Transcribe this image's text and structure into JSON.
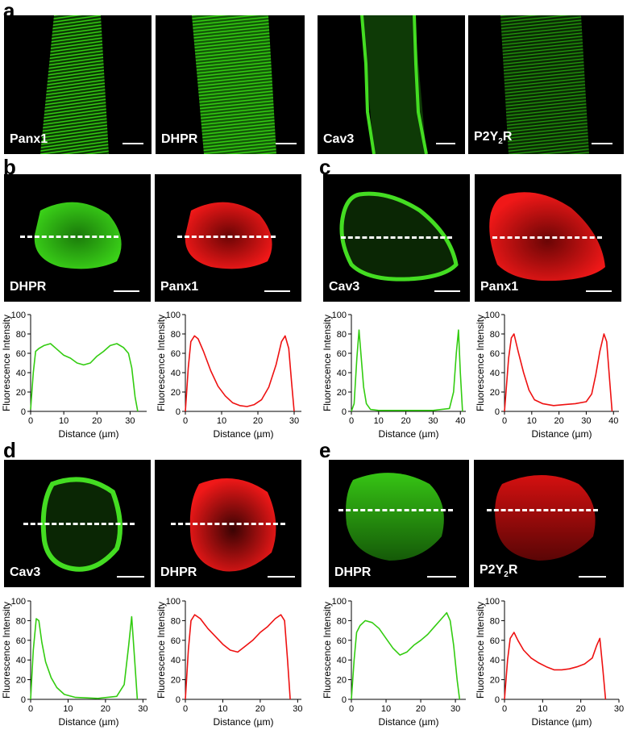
{
  "figure": {
    "panels": {
      "a": {
        "letter": "a",
        "images": [
          {
            "label": "Panx1",
            "sub": "",
            "color": "green",
            "kind": "striated"
          },
          {
            "label": "DHPR",
            "sub": "",
            "color": "green",
            "kind": "striated"
          },
          {
            "label": "Cav3",
            "sub": "",
            "color": "green",
            "kind": "membrane"
          },
          {
            "label": "P2Y",
            "sub": "2",
            "suffix": "R",
            "color": "green",
            "kind": "striated-dim"
          }
        ]
      },
      "b": {
        "letter": "b",
        "images": [
          {
            "label": "DHPR",
            "sub": "",
            "suffix": "",
            "color": "green"
          },
          {
            "label": "Panx1",
            "sub": "",
            "suffix": "",
            "color": "red"
          }
        ]
      },
      "c": {
        "letter": "c",
        "images": [
          {
            "label": "Cav3",
            "sub": "",
            "suffix": "",
            "color": "green"
          },
          {
            "label": "Panx1",
            "sub": "",
            "suffix": "",
            "color": "red"
          }
        ]
      },
      "d": {
        "letter": "d",
        "images": [
          {
            "label": "Cav3",
            "sub": "",
            "suffix": "",
            "color": "green"
          },
          {
            "label": "DHPR",
            "sub": "",
            "suffix": "",
            "color": "red"
          }
        ]
      },
      "e": {
        "letter": "e",
        "images": [
          {
            "label": "DHPR",
            "sub": "",
            "suffix": "",
            "color": "green"
          },
          {
            "label": "P2Y",
            "sub": "2",
            "suffix": "R",
            "color": "red"
          }
        ]
      }
    },
    "colors": {
      "green": "#33cc11",
      "red": "#ee1111",
      "background": "#000000"
    }
  },
  "chart_data": [
    {
      "id": "b-left",
      "type": "line",
      "xlabel": "Distance (µm)",
      "ylabel": "Fluorescence Intensity",
      "xlim": [
        0,
        35
      ],
      "ylim": [
        0,
        100
      ],
      "xticks": [
        0,
        10,
        20,
        30
      ],
      "yticks": [
        0,
        20,
        40,
        60,
        80,
        100
      ],
      "series": [
        {
          "color": "#33cc11",
          "x": [
            0,
            0.8,
            1.5,
            2.5,
            4,
            6,
            8,
            10,
            12,
            14,
            16,
            18,
            20,
            22,
            24,
            26,
            28,
            29.5,
            30.5,
            31.5,
            32.3
          ],
          "y": [
            2,
            40,
            62,
            65,
            68,
            70,
            64,
            58,
            55,
            50,
            48,
            50,
            57,
            62,
            68,
            70,
            66,
            60,
            45,
            15,
            0
          ]
        }
      ]
    },
    {
      "id": "b-right",
      "type": "line",
      "xlabel": "Distance (µm)",
      "ylabel": "Fluorescence Intensity",
      "xlim": [
        0,
        32
      ],
      "ylim": [
        0,
        100
      ],
      "xticks": [
        0,
        10,
        20,
        30
      ],
      "yticks": [
        0,
        20,
        40,
        60,
        80,
        100
      ],
      "series": [
        {
          "color": "#ee1111",
          "x": [
            0,
            0.8,
            1.5,
            2.5,
            3.5,
            5,
            7,
            9,
            11,
            13,
            15,
            17,
            19,
            21,
            23,
            25,
            26.5,
            27.5,
            28.5,
            29.3,
            30
          ],
          "y": [
            0,
            45,
            72,
            78,
            75,
            62,
            42,
            26,
            16,
            9,
            6,
            5,
            7,
            12,
            25,
            48,
            72,
            78,
            65,
            30,
            0
          ]
        }
      ]
    },
    {
      "id": "c-left",
      "type": "line",
      "xlabel": "Distance (µm)",
      "ylabel": "Fluorescence Intensity",
      "xlim": [
        0,
        42
      ],
      "ylim": [
        0,
        100
      ],
      "xticks": [
        0,
        10,
        20,
        30,
        40
      ],
      "yticks": [
        0,
        20,
        40,
        60,
        80,
        100
      ],
      "series": [
        {
          "color": "#33cc11",
          "x": [
            0,
            1,
            2,
            2.8,
            3.5,
            4.5,
            5.5,
            7,
            10,
            20,
            30,
            36,
            37.5,
            38.5,
            39.3,
            40,
            40.8
          ],
          "y": [
            0,
            8,
            55,
            84,
            60,
            25,
            8,
            2,
            1,
            1,
            1,
            3,
            20,
            60,
            84,
            40,
            0
          ]
        }
      ]
    },
    {
      "id": "c-right",
      "type": "line",
      "xlabel": "Distance (µm)",
      "ylabel": "Fluorescence Intensity",
      "xlim": [
        0,
        42
      ],
      "ylim": [
        0,
        100
      ],
      "xticks": [
        0,
        10,
        20,
        30,
        40
      ],
      "yticks": [
        0,
        20,
        40,
        60,
        80,
        100
      ],
      "series": [
        {
          "color": "#ee1111",
          "x": [
            0,
            1.5,
            2.5,
            3.5,
            5,
            7,
            9,
            11,
            14,
            18,
            22,
            26,
            30,
            32,
            33.5,
            35,
            36.5,
            37.5,
            38.5,
            39.5
          ],
          "y": [
            0,
            55,
            76,
            80,
            62,
            40,
            22,
            12,
            8,
            6,
            7,
            8,
            10,
            18,
            38,
            62,
            80,
            72,
            35,
            0
          ]
        }
      ]
    },
    {
      "id": "d-left",
      "type": "line",
      "xlabel": "Distance (µm)",
      "ylabel": "Fluorescence Intensity",
      "xlim": [
        0,
        31
      ],
      "ylim": [
        0,
        100
      ],
      "xticks": [
        0,
        10,
        20,
        30
      ],
      "yticks": [
        0,
        20,
        40,
        60,
        80,
        100
      ],
      "series": [
        {
          "color": "#33cc11",
          "x": [
            0,
            0.7,
            1.5,
            2.2,
            3,
            4,
            5.5,
            7,
            9,
            12,
            18,
            23,
            25,
            26.2,
            27,
            27.8,
            28.5
          ],
          "y": [
            0,
            50,
            82,
            80,
            58,
            38,
            22,
            12,
            5,
            2,
            1,
            3,
            15,
            55,
            84,
            40,
            0
          ]
        }
      ]
    },
    {
      "id": "d-right",
      "type": "line",
      "xlabel": "Distance (µm)",
      "ylabel": "Fluorescence Intensity",
      "xlim": [
        0,
        31
      ],
      "ylim": [
        0,
        100
      ],
      "xticks": [
        0,
        10,
        20,
        30
      ],
      "yticks": [
        0,
        20,
        40,
        60,
        80,
        100
      ],
      "series": [
        {
          "color": "#ee1111",
          "x": [
            0,
            0.8,
            1.5,
            2.5,
            4,
            6,
            8,
            10,
            12,
            14,
            16,
            18,
            20,
            22,
            24,
            25.5,
            26.5,
            27.3,
            28
          ],
          "y": [
            0,
            50,
            80,
            86,
            82,
            72,
            64,
            56,
            50,
            48,
            54,
            60,
            68,
            74,
            82,
            86,
            80,
            40,
            0
          ]
        }
      ]
    },
    {
      "id": "e-left",
      "type": "line",
      "xlabel": "Distance (µm)",
      "ylabel": "Fluorescence Intensity",
      "xlim": [
        0,
        33
      ],
      "ylim": [
        0,
        100
      ],
      "xticks": [
        0,
        10,
        20,
        30
      ],
      "yticks": [
        0,
        20,
        40,
        60,
        80,
        100
      ],
      "series": [
        {
          "color": "#33cc11",
          "x": [
            0,
            0.8,
            1.5,
            2.5,
            4,
            6,
            8,
            10,
            12,
            14,
            16,
            18,
            20,
            22,
            24,
            26,
            27.5,
            28.5,
            29.5,
            30.5,
            31.2
          ],
          "y": [
            0,
            40,
            68,
            75,
            80,
            78,
            72,
            62,
            52,
            45,
            48,
            55,
            60,
            66,
            74,
            82,
            88,
            80,
            55,
            20,
            0
          ]
        }
      ]
    },
    {
      "id": "e-right",
      "type": "line",
      "xlabel": "Distance (µm)",
      "ylabel": "Fluorescence Intensity",
      "xlim": [
        0,
        30
      ],
      "ylim": [
        0,
        100
      ],
      "xticks": [
        0,
        10,
        20,
        30
      ],
      "yticks": [
        0,
        20,
        40,
        60,
        80,
        100
      ],
      "series": [
        {
          "color": "#ee1111",
          "x": [
            0,
            0.8,
            1.5,
            2.5,
            3.5,
            5,
            7,
            9,
            11,
            13,
            15,
            17,
            19,
            21,
            23,
            24.2,
            25,
            25.8,
            26.5
          ],
          "y": [
            0,
            40,
            62,
            68,
            60,
            50,
            42,
            37,
            33,
            30,
            30,
            31,
            33,
            36,
            42,
            55,
            62,
            30,
            0
          ]
        }
      ]
    }
  ]
}
